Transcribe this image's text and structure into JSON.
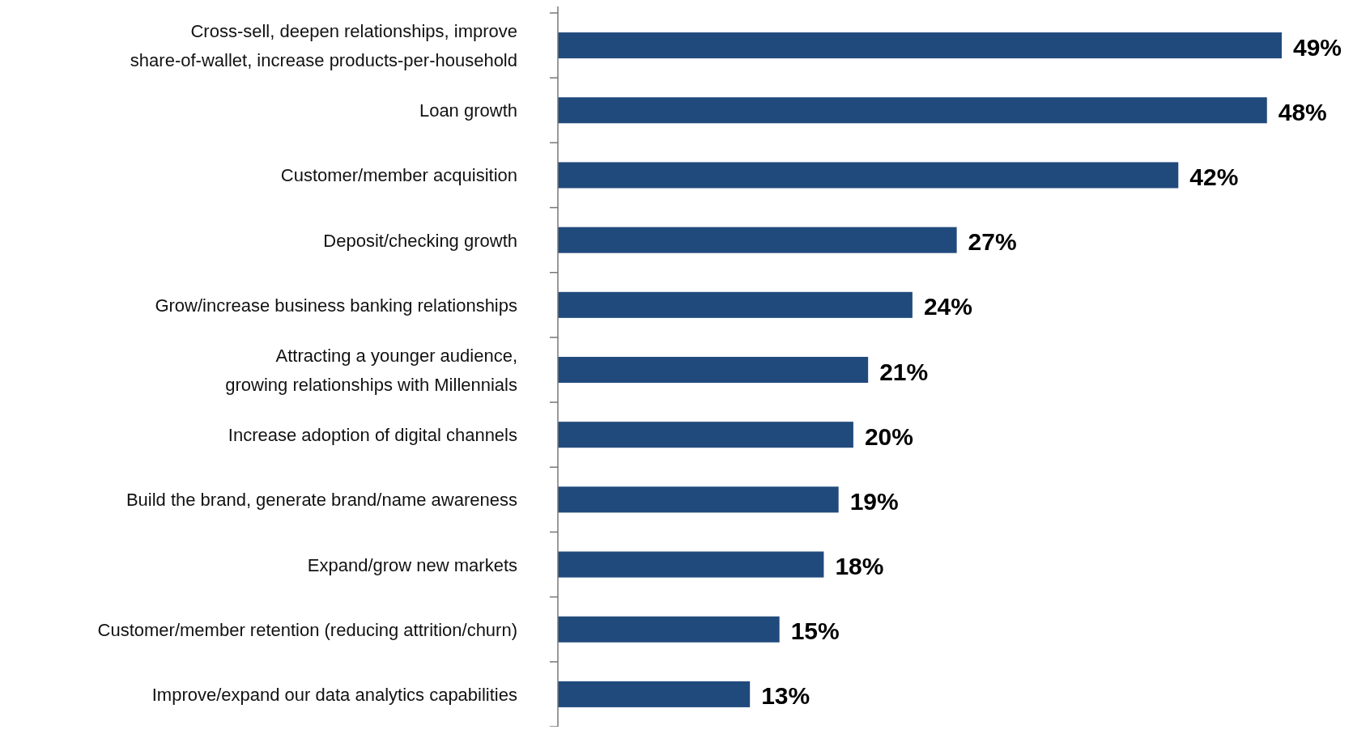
{
  "chart_data": {
    "type": "bar",
    "orientation": "horizontal",
    "categories": [
      "Cross-sell, deepen relationships, improve share-of-wallet, increase products-per-household",
      "Loan growth",
      "Customer/member acquisition",
      "Deposit/checking growth",
      "Grow/increase business banking relationships",
      "Attracting a younger audience, growing relationships with Millennials",
      "Increase adoption of digital channels",
      "Build the brand, generate brand/name awareness",
      "Expand/grow new markets",
      "Customer/member retention (reducing attrition/churn)",
      "Improve/expand our data analytics capabilities"
    ],
    "values": [
      49,
      48,
      42,
      27,
      24,
      21,
      20,
      19,
      18,
      15,
      13
    ],
    "value_labels": [
      "49%",
      "48%",
      "42%",
      "27%",
      "24%",
      "21%",
      "20%",
      "19%",
      "18%",
      "15%",
      "13%"
    ],
    "color": "#214a7c"
  }
}
